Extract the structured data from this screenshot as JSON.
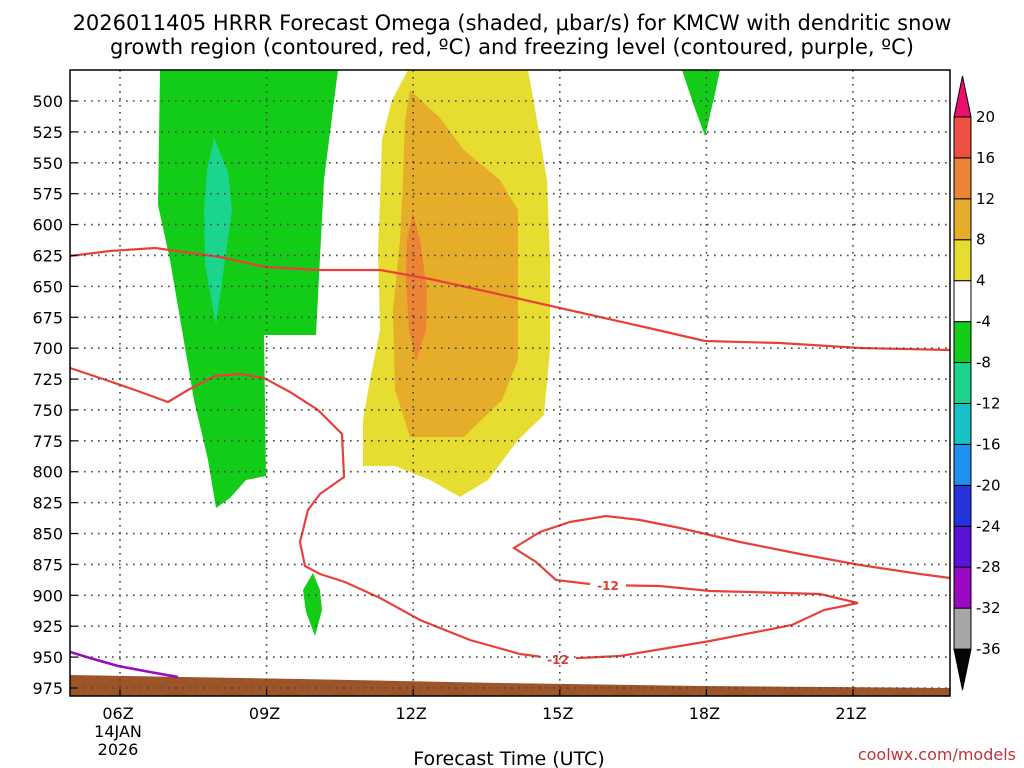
{
  "chart_data": {
    "type": "heatmap",
    "title": {
      "line1": "2026011405 HRRR Forecast Omega (shaded, μbar/s) for KMCW with dendritic snow",
      "line2": "growth region (contoured, red, ºC) and freezing level (contoured, purple, ºC)"
    },
    "xlabel": "Forecast Time (UTC)",
    "credit": "coolwx.com/models",
    "x_ticks": [
      {
        "hour": 6,
        "label": "06Z",
        "sub1": "14JAN",
        "sub2": "2026"
      },
      {
        "hour": 9,
        "label": "09Z"
      },
      {
        "hour": 12,
        "label": "12Z"
      },
      {
        "hour": 15,
        "label": "15Z"
      },
      {
        "hour": 18,
        "label": "18Z"
      },
      {
        "hour": 21,
        "label": "21Z"
      }
    ],
    "xlim": [
      5,
      23
    ],
    "y_ticks": [
      500,
      525,
      550,
      575,
      600,
      625,
      650,
      675,
      700,
      725,
      750,
      775,
      800,
      825,
      850,
      875,
      900,
      925,
      950,
      975
    ],
    "colorbar": {
      "bands": [
        {
          "color": "#050505",
          "kind": "under"
        },
        {
          "color": "#a6a6a6"
        },
        {
          "color": "#9a08c4"
        },
        {
          "color": "#5b12d6"
        },
        {
          "color": "#2633dc"
        },
        {
          "color": "#1c91ef"
        },
        {
          "color": "#17c1c5"
        },
        {
          "color": "#1bd48d"
        },
        {
          "color": "#13cc17"
        },
        {
          "color": "#ffffff"
        },
        {
          "color": "#e7dd31"
        },
        {
          "color": "#e6ad2b"
        },
        {
          "color": "#eb8535"
        },
        {
          "color": "#f04f44"
        },
        {
          "color": "#e7106e",
          "kind": "over"
        }
      ],
      "labels": [
        "-36",
        "-32",
        "-28",
        "-24",
        "-20",
        "-16",
        "-12",
        "-8",
        "-4",
        "4",
        "8",
        "12",
        "16",
        "20"
      ]
    },
    "series": [
      {
        "name": "Omega >= 4 (yellow)",
        "color": "#e7dd31"
      },
      {
        "name": "Omega >= 8 (light orange)",
        "color": "#e6ad2b"
      },
      {
        "name": "Omega >= 12 (orange)",
        "color": "#eb8535"
      },
      {
        "name": "Omega <= -4 (green)",
        "color": "#13cc17"
      },
      {
        "name": "Omega <= -8 (teal)",
        "color": "#1bd48d"
      },
      {
        "name": "Dendritic growth region (-12 ºC)",
        "color": "#e8403a"
      },
      {
        "name": "Freezing level (0 ºC)",
        "color": "#9a08c4"
      },
      {
        "name": "Terrain",
        "color": "#9b5529"
      }
    ],
    "contour_labels": [
      "-12",
      "-12"
    ]
  }
}
